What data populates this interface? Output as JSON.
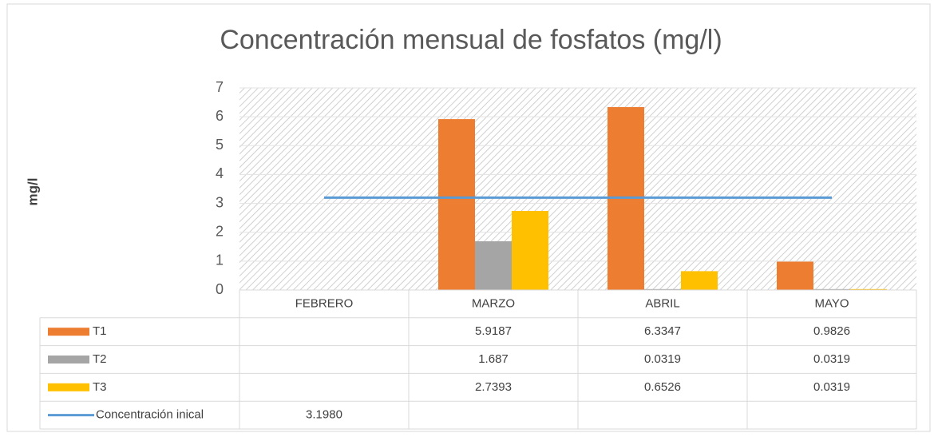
{
  "chart_data": {
    "type": "bar",
    "title": "Concentración mensual de fosfatos (mg/l)",
    "y_label": "mg/l",
    "categories": [
      "FEBRERO",
      "MARZO",
      "ABRIL",
      "MAYO"
    ],
    "series": [
      {
        "name": "T1",
        "color": "#ed7d31",
        "values": [
          null,
          5.9187,
          6.3347,
          0.9826
        ]
      },
      {
        "name": "T2",
        "color": "#a5a5a5",
        "values": [
          null,
          1.687,
          0.0319,
          0.0319
        ]
      },
      {
        "name": "T3",
        "color": "#ffc000",
        "values": [
          null,
          2.7393,
          0.6526,
          0.0319
        ]
      }
    ],
    "reference_line": {
      "name": "Concentración inical",
      "color": "#5b9bd5",
      "value": 3.198,
      "value_label": "3.1980"
    },
    "ylim": [
      0,
      7
    ],
    "yticks": [
      0,
      1,
      2,
      3,
      4,
      5,
      6,
      7
    ],
    "grid": true
  }
}
